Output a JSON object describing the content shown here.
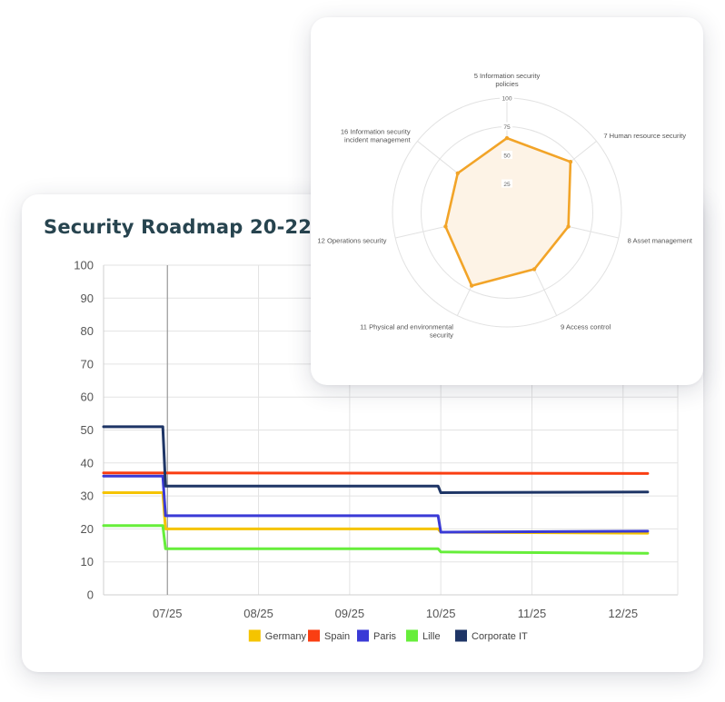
{
  "line_chart": {
    "title": "Security Roadmap 20-22"
  },
  "radar_chart": {
    "title": ""
  },
  "chart_data": [
    {
      "type": "line",
      "title": "Security Roadmap 20-22",
      "xlabel": "",
      "ylabel": "",
      "ylim": [
        0,
        100
      ],
      "yticks": [
        0,
        10,
        20,
        30,
        40,
        50,
        60,
        70,
        80,
        90,
        100
      ],
      "x_tick_labels": [
        "07/25",
        "08/25",
        "09/25",
        "10/25",
        "11/25",
        "12/25"
      ],
      "x_tick_positions": [
        0.7,
        1.7,
        2.7,
        3.7,
        4.7,
        5.7
      ],
      "xlim": [
        0,
        6.3
      ],
      "grid": true,
      "legend_position": "bottom",
      "series": [
        {
          "name": "Germany",
          "color": "#f5c400",
          "points": [
            [
              0,
              31
            ],
            [
              0.65,
              31
            ],
            [
              0.68,
              20
            ],
            [
              3.67,
              20
            ],
            [
              3.7,
              19
            ],
            [
              5.97,
              18.7
            ]
          ]
        },
        {
          "name": "Spain",
          "color": "#fa3e12",
          "points": [
            [
              0,
              37
            ],
            [
              5.97,
              36.8
            ]
          ]
        },
        {
          "name": "Paris",
          "color": "#3a3ad6",
          "points": [
            [
              0,
              36
            ],
            [
              0.65,
              36
            ],
            [
              0.68,
              24
            ],
            [
              3.67,
              24
            ],
            [
              3.7,
              19
            ],
            [
              5.97,
              19.3
            ]
          ]
        },
        {
          "name": "Lille",
          "color": "#66ee3a",
          "points": [
            [
              0,
              21
            ],
            [
              0.65,
              21
            ],
            [
              0.68,
              14
            ],
            [
              3.67,
              14
            ],
            [
              3.7,
              13
            ],
            [
              5.97,
              12.6
            ]
          ]
        },
        {
          "name": "Corporate IT",
          "color": "#1e3566",
          "points": [
            [
              0,
              51
            ],
            [
              0.65,
              51
            ],
            [
              0.68,
              33
            ],
            [
              3.67,
              33
            ],
            [
              3.7,
              31
            ],
            [
              5.97,
              31.2
            ]
          ]
        }
      ]
    },
    {
      "type": "radar",
      "title": "",
      "rlim": [
        0,
        100
      ],
      "rticks": [
        25,
        50,
        75,
        100
      ],
      "axes": [
        {
          "lines": [
            "5 Information security",
            "policies"
          ],
          "value": 65
        },
        {
          "lines": [
            "7 Human resource security"
          ],
          "value": 71
        },
        {
          "lines": [
            "8 Asset management"
          ],
          "value": 55
        },
        {
          "lines": [
            "9 Access control"
          ],
          "value": 55
        },
        {
          "lines": [
            "11 Physical and environmental",
            "security"
          ],
          "value": 71
        },
        {
          "lines": [
            "12 Operations security"
          ],
          "value": 55
        },
        {
          "lines": [
            "16 Information security",
            "incident management"
          ],
          "value": 55
        }
      ],
      "series": [
        {
          "name": "",
          "color": "#f2a428",
          "fill": "#fdf3e6"
        }
      ]
    }
  ]
}
